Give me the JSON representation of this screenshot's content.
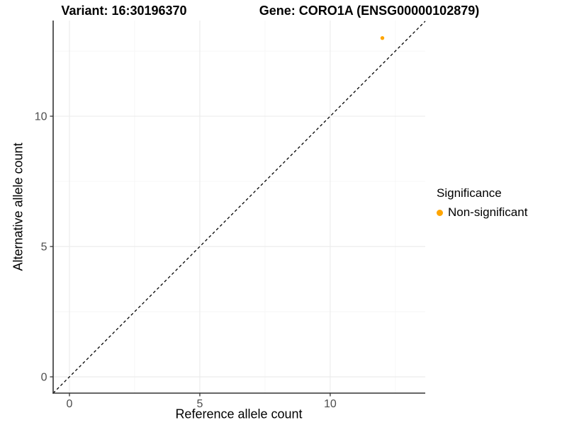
{
  "chart_data": {
    "type": "scatter",
    "title_left": "Variant: 16:30196370",
    "title_right": "Gene: CORO1A (ENSG00000102879)",
    "xlabel": "Reference allele count",
    "ylabel": "Alternative allele count",
    "xlim": [
      -0.625,
      13.645
    ],
    "ylim": [
      -0.625,
      13.67
    ],
    "xticks": [
      0,
      5,
      10
    ],
    "yticks": [
      0,
      5,
      10
    ],
    "xticks_minor": [
      2.5,
      7.5,
      12.5
    ],
    "yticks_minor": [
      2.5,
      7.5,
      12.5
    ],
    "grid": "major+minor",
    "identity_line": {
      "slope": 1,
      "intercept": 0,
      "style": "dashed",
      "color": "#000000"
    },
    "points": [
      {
        "x": 12,
        "y": 13,
        "series": "Non-significant"
      }
    ],
    "legend": {
      "title": "Significance",
      "position": "right",
      "items": [
        {
          "label": "Non-significant",
          "color": "#FFA500"
        }
      ]
    },
    "colors": {
      "background": "#FFFFFF",
      "grid_major": "#ECECEC",
      "grid_minor": "#F6F6F6",
      "axis_line": "#333333",
      "tick_mark": "#333333",
      "tick_label": "#4D4D4D"
    }
  }
}
